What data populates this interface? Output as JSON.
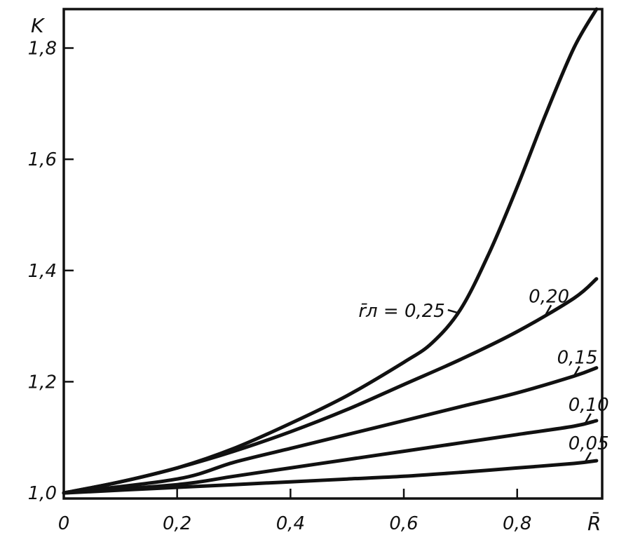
{
  "chart_data": {
    "type": "line",
    "title": "",
    "xlabel": "R̄",
    "ylabel": "K",
    "xlim": [
      0,
      0.95
    ],
    "ylim": [
      0.99,
      1.87
    ],
    "grid": false,
    "x_ticks": [
      {
        "value": 0,
        "label": "0"
      },
      {
        "value": 0.2,
        "label": "0,2"
      },
      {
        "value": 0.4,
        "label": "0,4"
      },
      {
        "value": 0.6,
        "label": "0,6"
      },
      {
        "value": 0.8,
        "label": "0,8"
      }
    ],
    "y_ticks": [
      {
        "value": 1.0,
        "label": "1,0"
      },
      {
        "value": 1.2,
        "label": "1,2"
      },
      {
        "value": 1.4,
        "label": "1,4"
      },
      {
        "value": 1.6,
        "label": "1,6"
      },
      {
        "value": 1.8,
        "label": "1,8"
      }
    ],
    "series": [
      {
        "name": "r̄л = 0,25",
        "label": "r̄л = 0,25",
        "label_at": 0.695,
        "x": [
          0,
          0.1,
          0.2,
          0.3,
          0.4,
          0.5,
          0.6,
          0.65,
          0.7,
          0.75,
          0.8,
          0.85,
          0.9,
          0.94
        ],
        "y": [
          1.0,
          1.02,
          1.045,
          1.08,
          1.125,
          1.175,
          1.235,
          1.27,
          1.33,
          1.43,
          1.55,
          1.68,
          1.8,
          1.87
        ]
      },
      {
        "name": "0,20",
        "label": "0,20",
        "label_at": 0.85,
        "x": [
          0,
          0.1,
          0.2,
          0.3,
          0.4,
          0.5,
          0.6,
          0.7,
          0.8,
          0.9,
          0.94
        ],
        "y": [
          1.0,
          1.02,
          1.045,
          1.075,
          1.11,
          1.15,
          1.195,
          1.24,
          1.29,
          1.35,
          1.385
        ]
      },
      {
        "name": "0,15",
        "label": "0,15",
        "label_at": 0.9,
        "x": [
          0,
          0.2,
          0.3,
          0.4,
          0.5,
          0.6,
          0.7,
          0.8,
          0.9,
          0.94
        ],
        "y": [
          1.0,
          1.025,
          1.055,
          1.08,
          1.105,
          1.13,
          1.155,
          1.18,
          1.21,
          1.225
        ]
      },
      {
        "name": "0,10",
        "label": "0,10",
        "label_at": 0.92,
        "x": [
          0,
          0.2,
          0.3,
          0.4,
          0.5,
          0.6,
          0.7,
          0.8,
          0.9,
          0.94
        ],
        "y": [
          1.0,
          1.015,
          1.03,
          1.045,
          1.06,
          1.075,
          1.09,
          1.105,
          1.12,
          1.13
        ]
      },
      {
        "name": "0,05",
        "label": "0,05",
        "label_at": 0.92,
        "x": [
          0,
          0.2,
          0.3,
          0.4,
          0.5,
          0.6,
          0.7,
          0.8,
          0.9,
          0.94
        ],
        "y": [
          1.0,
          1.01,
          1.015,
          1.02,
          1.025,
          1.03,
          1.037,
          1.045,
          1.053,
          1.058
        ]
      }
    ]
  }
}
